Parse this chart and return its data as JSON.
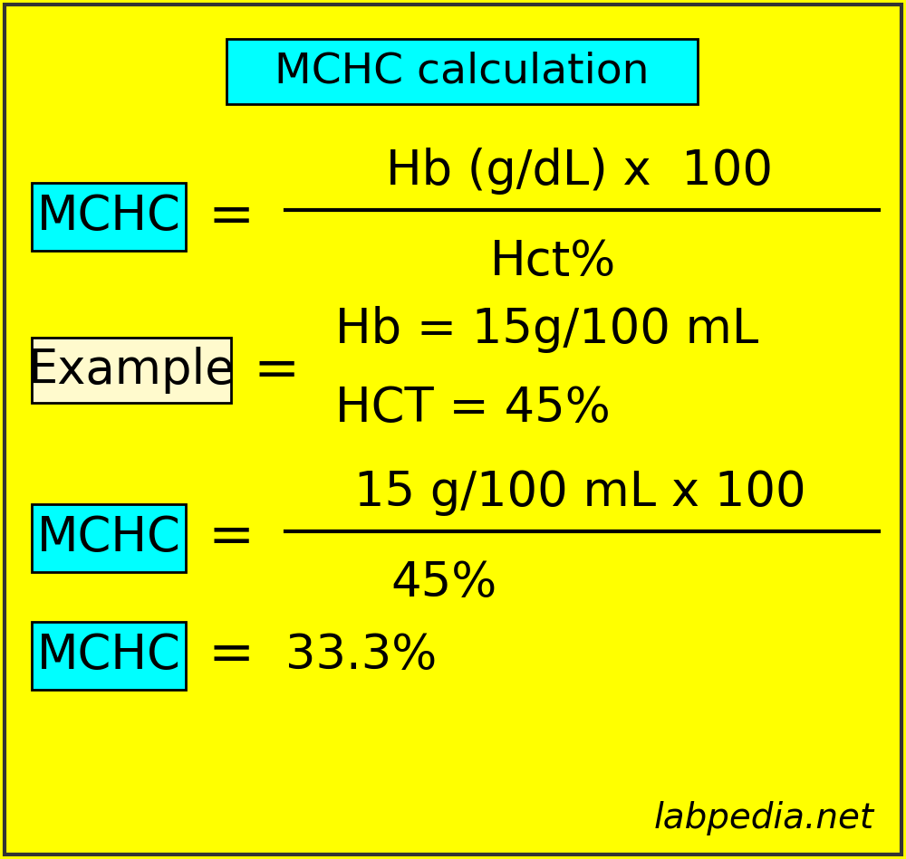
{
  "background_color": "#FFFF00",
  "title_text": "MCHC calculation",
  "title_box_color": "#00FFFF",
  "title_fontsize": 34,
  "mchc_box_color": "#00FFFF",
  "example_box_color": "#FFFACD",
  "formula_numerator": "Hb (g/dL) x  100",
  "formula_denominator": "Hct%",
  "example_line1": "Hb = 15g/100 mL",
  "example_line2": "HCT = 45%",
  "calc_numerator": "15 g/100 mL x 100",
  "calc_denominator": "45%",
  "result_text": "33.3%",
  "equals_sign": "=",
  "watermark": "labpedia.net",
  "main_fontsize": 38,
  "small_fontsize": 30,
  "box_label": "MCHC",
  "example_label": "Example",
  "text_color": "#000000",
  "watermark_color": "#000000"
}
